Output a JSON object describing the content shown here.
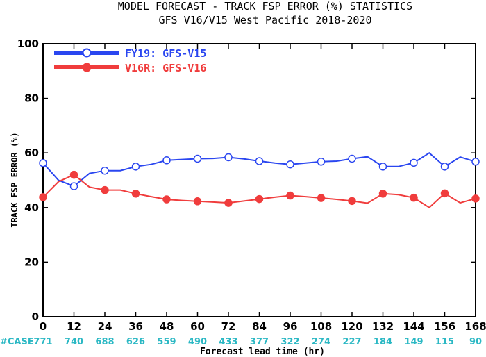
{
  "chart_data": {
    "type": "line",
    "title": "MODEL FORECAST - TRACK FSP ERROR (%) STATISTICS",
    "subtitle": "GFS V16/V15 West Pacific 2018-2020",
    "xlabel": "Forecast lead time (hr)",
    "ylabel": "TRACK FSP ERROR (%)",
    "xlim": [
      0,
      168
    ],
    "ylim": [
      0,
      100
    ],
    "x_ticks": [
      0,
      12,
      24,
      36,
      48,
      60,
      72,
      84,
      96,
      108,
      120,
      132,
      144,
      156,
      168
    ],
    "y_ticks": [
      0,
      20,
      40,
      60,
      80,
      100
    ],
    "legend_position": "top-left",
    "grid": false,
    "case_label": "#CASE",
    "case_counts": [
      "771",
      "740",
      "688",
      "626",
      "559",
      "490",
      "433",
      "377",
      "322",
      "274",
      "227",
      "184",
      "149",
      "115",
      "90"
    ],
    "series": [
      {
        "name": "FY19: GFS-V15",
        "color": "#2a46f0",
        "marker": "open-circle",
        "x": [
          0,
          6,
          12,
          18,
          24,
          30,
          36,
          42,
          48,
          54,
          60,
          66,
          72,
          78,
          84,
          90,
          96,
          102,
          108,
          114,
          120,
          126,
          132,
          138,
          144,
          150,
          156,
          162,
          168
        ],
        "y": [
          56.3,
          50.0,
          47.8,
          52.5,
          53.5,
          53.5,
          55.0,
          55.8,
          57.3,
          57.6,
          57.9,
          58.0,
          58.4,
          57.8,
          57.0,
          56.3,
          55.8,
          56.3,
          56.8,
          57.0,
          57.9,
          58.6,
          55.0,
          55.0,
          56.4,
          60.0,
          55.0,
          58.5,
          56.8
        ]
      },
      {
        "name": "V16R: GFS-V16",
        "color": "#f03c3c",
        "marker": "filled-circle",
        "x": [
          0,
          6,
          12,
          18,
          24,
          30,
          36,
          42,
          48,
          54,
          60,
          66,
          72,
          78,
          84,
          90,
          96,
          102,
          108,
          114,
          120,
          126,
          132,
          138,
          144,
          150,
          156,
          162,
          168
        ],
        "y": [
          43.8,
          49.5,
          52.0,
          47.5,
          46.4,
          46.4,
          45.1,
          44.0,
          43.0,
          42.6,
          42.3,
          42.0,
          41.7,
          42.4,
          43.1,
          43.8,
          44.4,
          44.0,
          43.5,
          43.0,
          42.4,
          41.6,
          45.1,
          44.7,
          43.6,
          40.0,
          45.2,
          41.7,
          43.3
        ]
      }
    ],
    "marker_x": [
      0,
      12,
      24,
      36,
      48,
      60,
      72,
      84,
      96,
      108,
      120,
      132,
      144,
      156,
      168
    ]
  }
}
